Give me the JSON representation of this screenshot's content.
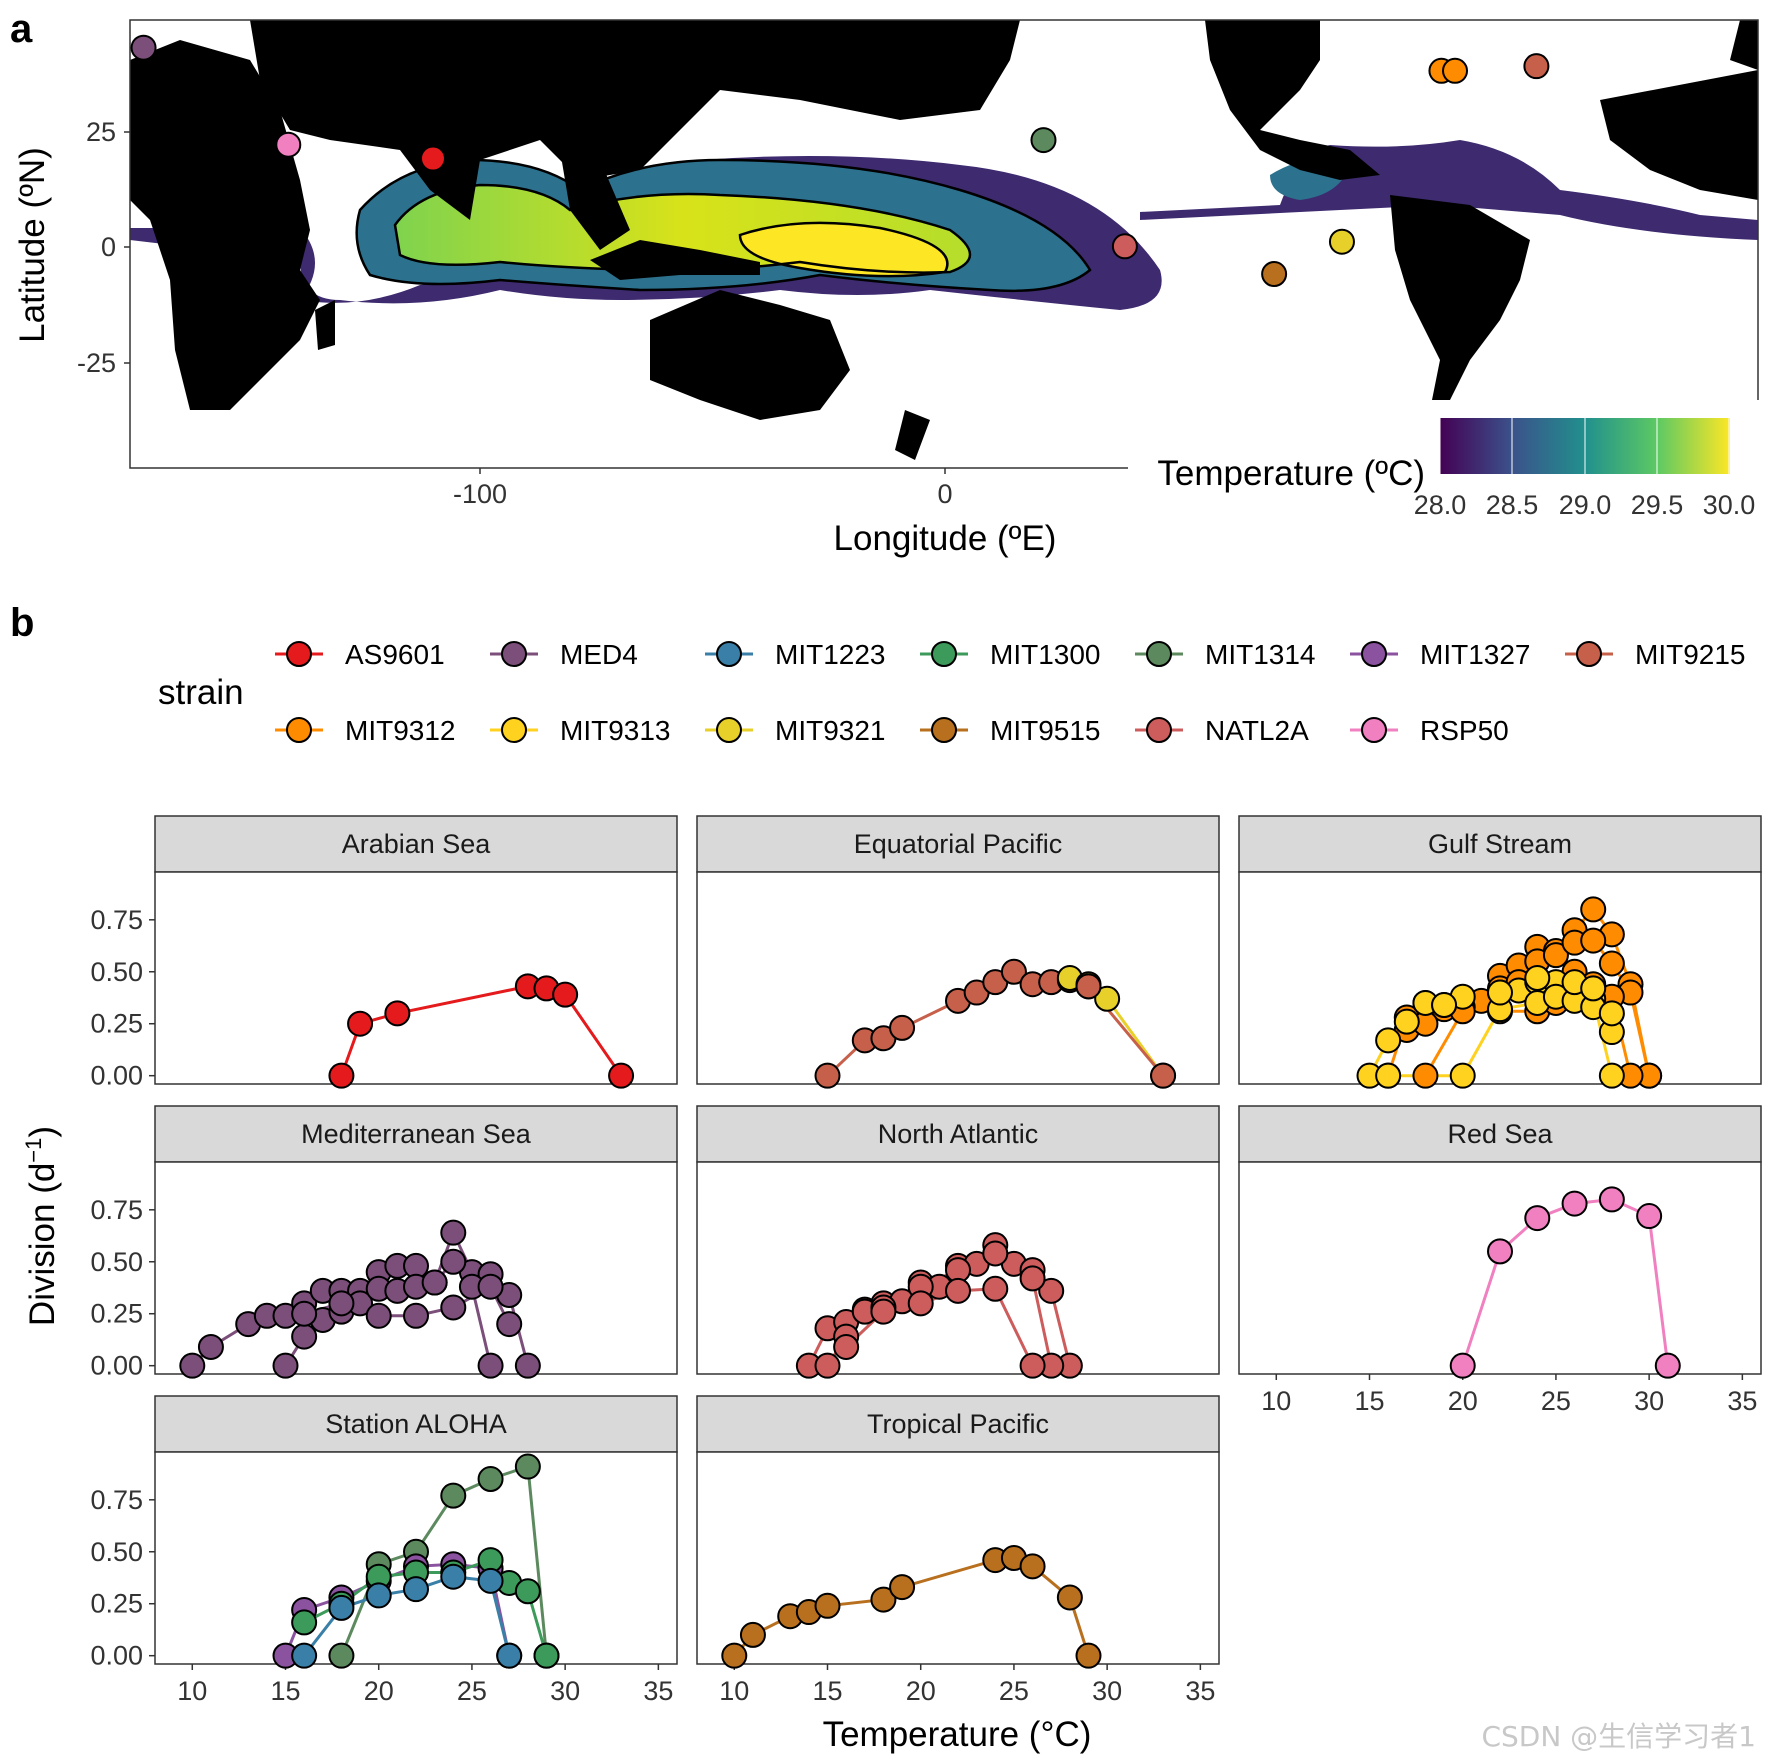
{
  "panel_a": {
    "letter": "a",
    "x_label": "Longitude (ºE)",
    "y_label": "Latitude (ºN)",
    "colorbar": {
      "title": "Temperature (ºC)",
      "ticks": [
        "28.0",
        "28.5",
        "29.0",
        "29.5",
        "30.0"
      ],
      "colors": [
        "#440154",
        "#3b528b",
        "#21908d",
        "#5dc963",
        "#fde725"
      ]
    }
  },
  "panel_b": {
    "letter": "b",
    "legend_title": "strain",
    "x_label": "Temperature (°C)",
    "y_label_main": "Division (d",
    "y_label_sup": "−1",
    "y_label_close": ")"
  },
  "watermark": "CSDN @生信学习者1",
  "chart_data": [
    {
      "type": "scatter",
      "subtype": "map-with-temperature-contours",
      "xlabel": "Longitude (ºE)",
      "ylabel": "Latitude (ºN)",
      "xlim": [
        -180,
        180
      ],
      "ylim": [
        -48,
        49
      ],
      "x_ticks": [
        -100,
        0
      ],
      "x_tick_labels": [
        "-100",
        "0"
      ],
      "y_ticks": [
        25,
        0,
        -25
      ],
      "y_tick_labels": [
        "25",
        "0",
        "-25"
      ],
      "legend_title": "Temperature (ºC)",
      "legend_range": [
        28.0,
        30.0
      ],
      "sites": [
        {
          "strain": "MED4",
          "lon": -177,
          "lat": 43
        },
        {
          "strain": "RSP50",
          "lon": -145,
          "lat": 22
        },
        {
          "strain": "AS9601",
          "lon": -113,
          "lat": 19
        },
        {
          "strain": "MIT1314",
          "lon": 22,
          "lat": 23
        },
        {
          "strain": "NATL2A",
          "lon": 40,
          "lat": 0
        },
        {
          "strain": "MIT9515",
          "lon": 73,
          "lat": -6
        },
        {
          "strain": "MIT9321",
          "lon": 88,
          "lat": 1
        },
        {
          "strain": "MIT9312",
          "lon": 110,
          "lat": 38
        },
        {
          "strain": "MIT9312",
          "lon": 113,
          "lat": 38
        },
        {
          "strain": "MIT9215",
          "lon": 131,
          "lat": 39
        }
      ]
    },
    {
      "type": "line",
      "xlabel": "Temperature (°C)",
      "ylabel": "Division (d−1)",
      "xlim": [
        8,
        36
      ],
      "ylim": [
        -0.04,
        0.98
      ],
      "x_ticks": [
        10,
        15,
        20,
        25,
        30,
        35
      ],
      "y_ticks": [
        0,
        0.25,
        0.5,
        0.75
      ],
      "y_tick_labels": [
        "0.00",
        "0.25",
        "0.50",
        "0.75"
      ],
      "legend": [
        {
          "name": "AS9601",
          "color": "#e41a1c"
        },
        {
          "name": "MED4",
          "color": "#7b4f7a"
        },
        {
          "name": "MIT1223",
          "color": "#3a7fa8"
        },
        {
          "name": "MIT1300",
          "color": "#3c9a5a"
        },
        {
          "name": "MIT1314",
          "color": "#5c8a5e"
        },
        {
          "name": "MIT1327",
          "color": "#8b52a0"
        },
        {
          "name": "MIT9215",
          "color": "#c7604a"
        },
        {
          "name": "MIT9312",
          "color": "#ff8c00"
        },
        {
          "name": "MIT9313",
          "color": "#ffd21f"
        },
        {
          "name": "MIT9321",
          "color": "#e8d02a"
        },
        {
          "name": "MIT9515",
          "color": "#b8701e"
        },
        {
          "name": "NATL2A",
          "color": "#cd5c5c"
        },
        {
          "name": "RSP50",
          "color": "#f080c0"
        }
      ],
      "panels": [
        {
          "title": "Arabian Sea",
          "series": [
            {
              "name": "AS9601",
              "color": "#e41a1c",
              "x": [
                18,
                19,
                21,
                28,
                29,
                30,
                33
              ],
              "y": [
                0.0,
                0.25,
                0.3,
                0.43,
                0.42,
                0.39,
                0.0
              ]
            }
          ]
        },
        {
          "title": "Equatorial Pacific",
          "series": [
            {
              "name": "MIT9215",
              "color": "#c7604a",
              "x": [
                15,
                17,
                18,
                19,
                22,
                23,
                24,
                25,
                26,
                27,
                28,
                29
              ],
              "y": [
                0.0,
                0.17,
                0.18,
                0.23,
                0.36,
                0.4,
                0.45,
                0.5,
                0.44,
                0.45,
                0.46,
                0.43
              ]
            },
            {
              "name": "MIT9321",
              "color": "#e8d02a",
              "x": [
                28,
                29,
                30,
                33
              ],
              "y": [
                0.47,
                0.44,
                0.37,
                0.0
              ]
            },
            {
              "name": "MIT9215",
              "color": "#c7604a",
              "x": [
                29,
                33
              ],
              "y": [
                0.43,
                0.0
              ]
            }
          ]
        },
        {
          "title": "Gulf Stream",
          "series": [
            {
              "name": "MIT9312",
              "color": "#ff8c00",
              "x": [
                16,
                17,
                18,
                19,
                20,
                21,
                22,
                23,
                24,
                25,
                26,
                27,
                28,
                29,
                30
              ],
              "y": [
                0.0,
                0.28,
                0.35,
                0.32,
                0.34,
                0.36,
                0.48,
                0.53,
                0.62,
                0.6,
                0.7,
                0.8,
                0.68,
                0.44,
                0.0
              ]
            },
            {
              "name": "MIT9312",
              "color": "#ff8c00",
              "x": [
                17,
                18,
                20,
                22,
                23,
                24,
                25,
                26,
                27,
                28,
                29,
                30
              ],
              "y": [
                0.22,
                0.25,
                0.33,
                0.42,
                0.45,
                0.55,
                0.58,
                0.64,
                0.65,
                0.54,
                0.4,
                0.0
              ]
            },
            {
              "name": "MIT9312",
              "color": "#ff8c00",
              "x": [
                18,
                20,
                22,
                24,
                25,
                26,
                27,
                28,
                29
              ],
              "y": [
                0.0,
                0.31,
                0.31,
                0.31,
                0.35,
                0.5,
                0.44,
                0.38,
                0.0
              ]
            },
            {
              "name": "MIT9313",
              "color": "#ffd21f",
              "x": [
                15,
                16,
                17,
                18,
                19,
                20,
                22,
                23,
                24,
                25,
                26,
                27,
                28
              ],
              "y": [
                0.0,
                0.17,
                0.26,
                0.35,
                0.34,
                0.38,
                0.4,
                0.41,
                0.45,
                0.45,
                0.41,
                0.37,
                0.0
              ]
            },
            {
              "name": "MIT9313",
              "color": "#ffd21f",
              "x": [
                16,
                20,
                22,
                24,
                25,
                26,
                27,
                28
              ],
              "y": [
                0.0,
                0.0,
                0.32,
                0.35,
                0.38,
                0.36,
                0.33,
                0.21
              ]
            },
            {
              "name": "MIT9313",
              "color": "#ffd21f",
              "x": [
                19,
                22,
                24,
                26,
                27,
                28
              ],
              "y": [
                0.34,
                0.4,
                0.47,
                0.45,
                0.42,
                0.3
              ]
            }
          ]
        },
        {
          "title": "Mediterranean Sea",
          "series": [
            {
              "name": "MED4",
              "color": "#7b4f7a",
              "x": [
                10,
                11,
                13,
                14,
                15,
                16,
                17,
                18,
                19,
                20,
                21,
                22,
                23,
                24,
                25,
                26,
                27,
                28
              ],
              "y": [
                0.0,
                0.09,
                0.2,
                0.24,
                0.24,
                0.3,
                0.36,
                0.36,
                0.36,
                0.45,
                0.48,
                0.48,
                0.4,
                0.64,
                0.45,
                0.44,
                0.34,
                0.0
              ]
            },
            {
              "name": "MED4",
              "color": "#7b4f7a",
              "x": [
                15,
                16,
                17,
                18,
                19,
                20,
                21,
                22,
                23,
                24,
                25,
                26
              ],
              "y": [
                0.0,
                0.14,
                0.22,
                0.26,
                0.3,
                0.37,
                0.36,
                0.38,
                0.4,
                0.5,
                0.38,
                0.0
              ]
            },
            {
              "name": "MED4",
              "color": "#7b4f7a",
              "x": [
                16,
                18,
                20,
                22,
                24,
                26,
                27
              ],
              "y": [
                0.25,
                0.3,
                0.24,
                0.24,
                0.28,
                0.38,
                0.2
              ]
            }
          ]
        },
        {
          "title": "North Atlantic",
          "series": [
            {
              "name": "NATL2A",
              "color": "#cd5c5c",
              "x": [
                14,
                15,
                16,
                17,
                18,
                19,
                20,
                21,
                22,
                23,
                24,
                25,
                26,
                27,
                28
              ],
              "y": [
                0.0,
                0.18,
                0.21,
                0.27,
                0.3,
                0.31,
                0.4,
                0.38,
                0.48,
                0.49,
                0.58,
                0.49,
                0.46,
                0.36,
                0.0
              ]
            },
            {
              "name": "NATL2A",
              "color": "#cd5c5c",
              "x": [
                15,
                16,
                17,
                18,
                20,
                22,
                24,
                26,
                27
              ],
              "y": [
                0.0,
                0.14,
                0.26,
                0.28,
                0.38,
                0.46,
                0.54,
                0.42,
                0.0
              ]
            },
            {
              "name": "NATL2A",
              "color": "#cd5c5c",
              "x": [
                16,
                18,
                20,
                22,
                24,
                26
              ],
              "y": [
                0.09,
                0.26,
                0.3,
                0.36,
                0.37,
                0.0
              ]
            }
          ]
        },
        {
          "title": "Red Sea",
          "series": [
            {
              "name": "RSP50",
              "color": "#f080c0",
              "x": [
                20,
                22,
                24,
                26,
                28,
                30,
                31
              ],
              "y": [
                0.0,
                0.55,
                0.71,
                0.78,
                0.8,
                0.72,
                0.0
              ]
            }
          ]
        },
        {
          "title": "Station ALOHA",
          "series": [
            {
              "name": "MIT1314",
              "color": "#5c8a5e",
              "x": [
                18,
                20,
                22,
                24,
                26,
                28,
                29
              ],
              "y": [
                0.0,
                0.44,
                0.5,
                0.77,
                0.85,
                0.91,
                0.0
              ]
            },
            {
              "name": "MIT1327",
              "color": "#8b52a0",
              "x": [
                15,
                16,
                18,
                20,
                22,
                24,
                26,
                27
              ],
              "y": [
                0.0,
                0.22,
                0.28,
                0.36,
                0.43,
                0.44,
                0.42,
                0.0
              ]
            },
            {
              "name": "MIT1300",
              "color": "#3c9a5a",
              "x": [
                16,
                18,
                20,
                22,
                24,
                26,
                27,
                28,
                29
              ],
              "y": [
                0.16,
                0.25,
                0.38,
                0.4,
                0.4,
                0.46,
                0.35,
                0.31,
                0.0
              ]
            },
            {
              "name": "MIT1223",
              "color": "#3a7fa8",
              "x": [
                16,
                18,
                20,
                22,
                24,
                26,
                27
              ],
              "y": [
                0.0,
                0.23,
                0.29,
                0.32,
                0.38,
                0.36,
                0.0
              ]
            }
          ]
        },
        {
          "title": "Tropical Pacific",
          "series": [
            {
              "name": "MIT9515",
              "color": "#b8701e",
              "x": [
                10,
                11,
                13,
                14,
                15,
                18,
                19,
                24,
                25,
                26,
                28,
                29
              ],
              "y": [
                0.0,
                0.1,
                0.19,
                0.21,
                0.24,
                0.27,
                0.33,
                0.46,
                0.47,
                0.43,
                0.28,
                0.0
              ]
            }
          ]
        }
      ]
    }
  ]
}
